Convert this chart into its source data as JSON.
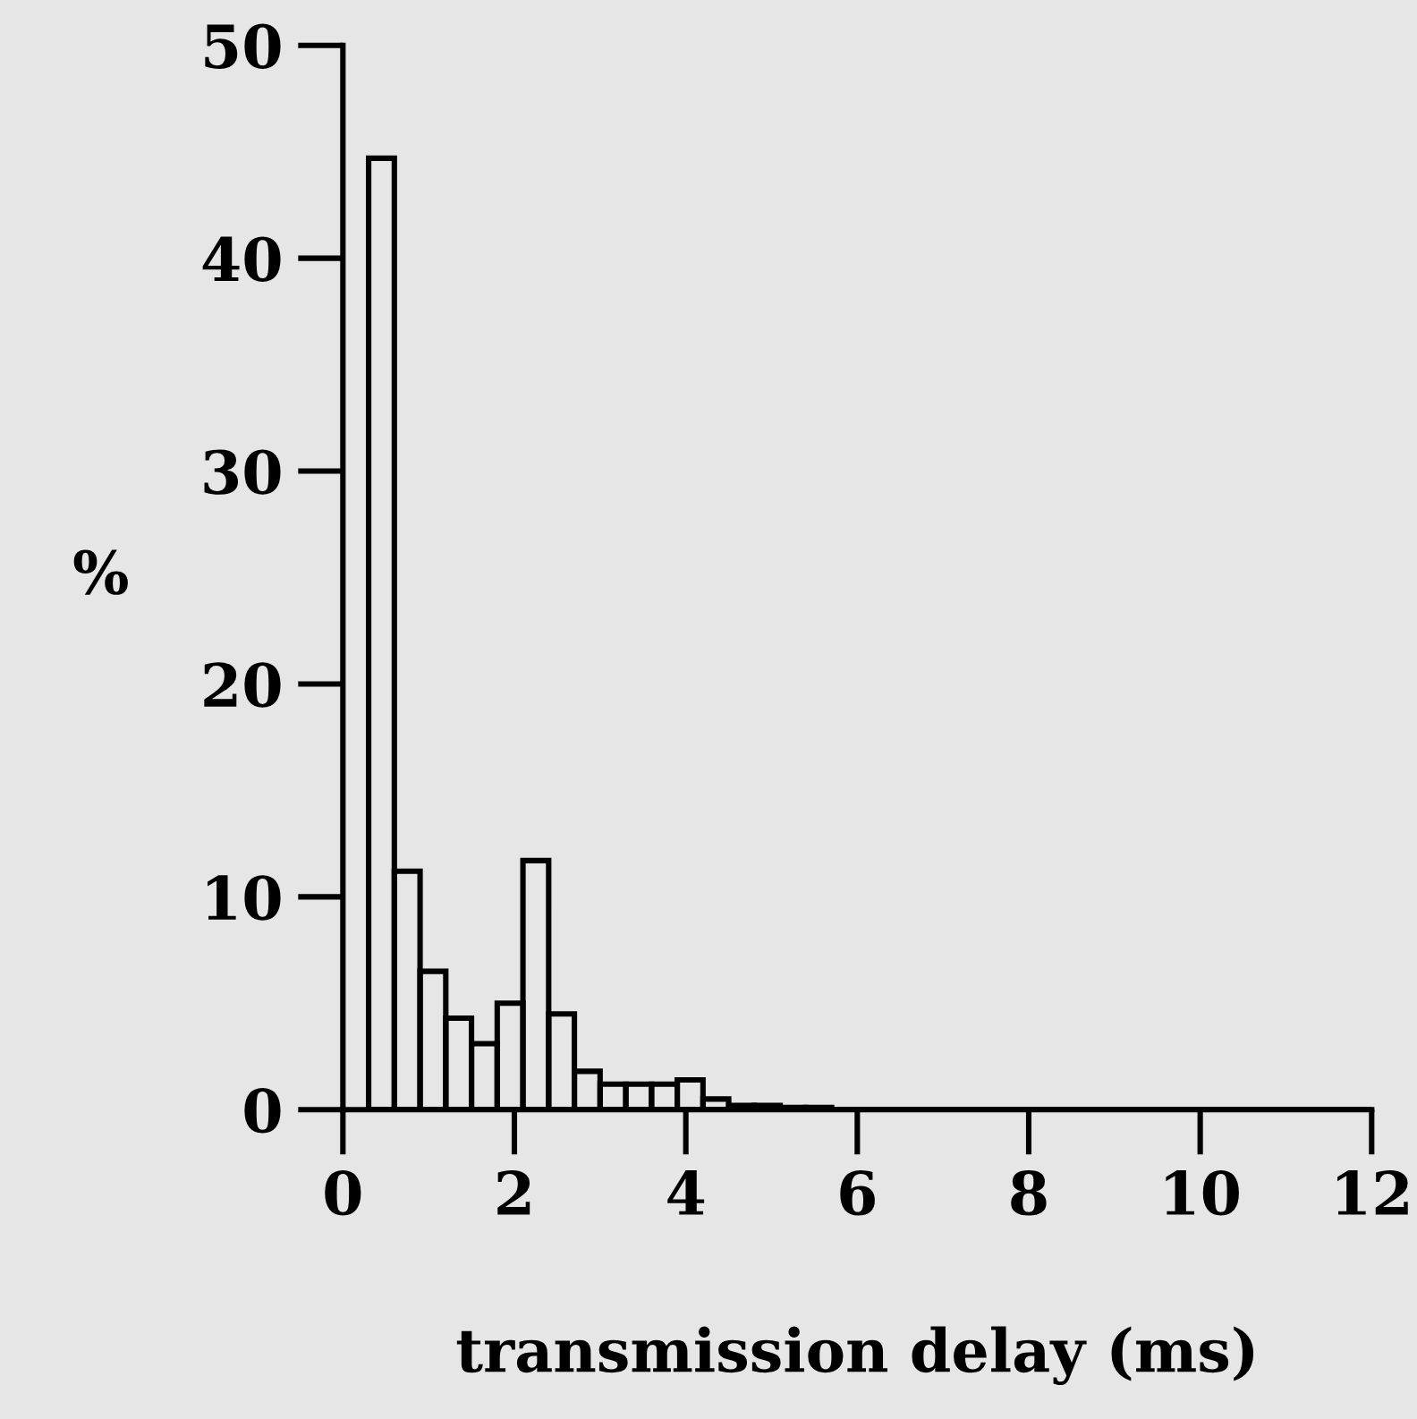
{
  "chart_data": {
    "type": "histogram",
    "xlabel": "transmission delay (ms)",
    "ylabel": "%",
    "bins": [
      0.3,
      0.6,
      0.9,
      1.2,
      1.5,
      1.8,
      2.1,
      2.4,
      2.7,
      3.0,
      3.3,
      3.6,
      3.9,
      4.2,
      4.5,
      4.8,
      5.1,
      5.4,
      5.7,
      6.0,
      6.3,
      6.6,
      6.9,
      7.2,
      7.5,
      7.8,
      8.1,
      8.4,
      8.7,
      9.0,
      9.3,
      9.6,
      9.9,
      10.2,
      10.5,
      10.8,
      11.1,
      11.4,
      11.7,
      12.0
    ],
    "values": [
      44.7,
      11.2,
      6.5,
      4.3,
      3.1,
      5.0,
      11.7,
      4.5,
      1.8,
      1.2,
      1.2,
      1.2,
      1.4,
      0.5,
      0.2,
      0.2,
      0.1,
      0.1,
      0,
      0,
      0,
      0,
      0,
      0,
      0,
      0,
      0,
      0,
      0,
      0,
      0,
      0,
      0,
      0,
      0,
      0,
      0,
      0,
      0
    ],
    "color": "#000000",
    "xlim": [
      0,
      12
    ],
    "ylim": [
      0,
      50
    ],
    "xticks": [
      0,
      2,
      4,
      6,
      8,
      10,
      12
    ],
    "yticks": [
      0,
      10,
      20,
      30,
      40,
      50
    ],
    "grid": false,
    "legend": false
  }
}
